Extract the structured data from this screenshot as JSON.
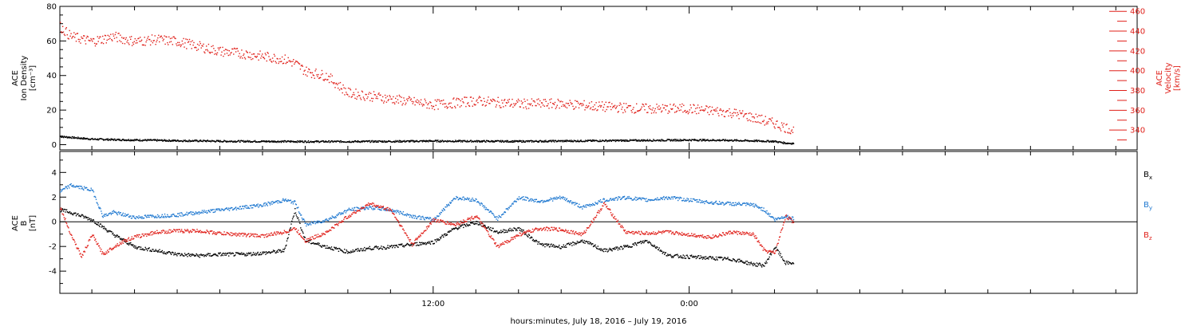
{
  "chart_data": [
    {
      "type": "scatter",
      "panel": "top",
      "left_axis": {
        "label_lines": [
          "ACE",
          "Ion Density",
          "[cm⁻³]"
        ],
        "ylim": [
          -3,
          80
        ],
        "ticks": [
          0,
          20,
          40,
          60,
          80
        ],
        "color": "#000000"
      },
      "right_axis": {
        "label_lines": [
          "ACE",
          "Velocity",
          "[km/s]"
        ],
        "ylim": [
          320,
          465
        ],
        "ticks": [
          340,
          360,
          380,
          400,
          420,
          440,
          460
        ],
        "color": "#e0201a"
      },
      "xlim_hours": [
        -5.5,
        45
      ],
      "series": [
        {
          "axis": "left",
          "color": "#000000",
          "x": [
            -5.5,
            -5,
            -4,
            -3,
            -2,
            -1,
            0,
            1,
            2,
            4,
            6,
            8,
            10,
            12,
            14,
            16,
            18,
            20,
            22,
            24,
            26,
            28,
            28.5,
            28.9
          ],
          "values": [
            5,
            4.5,
            3.5,
            3.2,
            3,
            2.8,
            2.6,
            2.5,
            2.3,
            2.2,
            2.1,
            2.1,
            2.2,
            2.4,
            2.3,
            2.2,
            2.4,
            2.6,
            2.8,
            3,
            2.8,
            2.2,
            1.2,
            1
          ]
        },
        {
          "axis": "right",
          "color": "#e0201a",
          "x": [
            -5.5,
            -5,
            -4,
            -3,
            -2,
            -1,
            0,
            1,
            2,
            3,
            4,
            5,
            5.5,
            6,
            7,
            8,
            10,
            12,
            14,
            16,
            18,
            20,
            22,
            24,
            26,
            27,
            28,
            28.9
          ],
          "values": [
            445,
            435,
            430,
            435,
            430,
            432,
            430,
            425,
            420,
            418,
            415,
            412,
            408,
            400,
            395,
            378,
            372,
            366,
            370,
            367,
            367,
            364,
            362,
            362,
            358,
            353,
            347,
            340
          ]
        }
      ]
    },
    {
      "type": "scatter",
      "panel": "bottom",
      "left_axis": {
        "label_lines": [
          "ACE",
          "B",
          "[nT]"
        ],
        "ylim": [
          -5.8,
          5.7
        ],
        "ticks": [
          -4,
          -2,
          0,
          2,
          4
        ],
        "color": "#000000"
      },
      "xlim_hours": [
        -5.5,
        45
      ],
      "zero_line": true,
      "legend_placement": "right",
      "legend": [
        {
          "label": "B",
          "sub": "x",
          "color": "#000000"
        },
        {
          "label": "B",
          "sub": "y",
          "color": "#1f78d0"
        },
        {
          "label": "B",
          "sub": "z",
          "color": "#e0201a"
        }
      ],
      "series": [
        {
          "name": "Bx",
          "color": "#000000",
          "x": [
            -5.5,
            -5,
            -4,
            -3,
            -2.5,
            -2,
            -1,
            0,
            1,
            2,
            3,
            4,
            5,
            5.5,
            6,
            7,
            8,
            9,
            10,
            11,
            12,
            13,
            14,
            15,
            16,
            17,
            18,
            19,
            20,
            21,
            22,
            23,
            24,
            25,
            26,
            27,
            27.5,
            28,
            28.5,
            28.9
          ],
          "values": [
            1,
            0.8,
            0.2,
            -1,
            -1.5,
            -2,
            -2.3,
            -2.6,
            -2.7,
            -2.6,
            -2.6,
            -2.5,
            -2.3,
            1,
            -1.5,
            -2,
            -2.4,
            -2.1,
            -2,
            -1.8,
            -1.6,
            -0.5,
            0,
            -0.8,
            -0.5,
            -1.8,
            -2,
            -1.5,
            -2.3,
            -2,
            -1.5,
            -2.7,
            -2.8,
            -2.9,
            -3,
            -3.4,
            -3.5,
            -2,
            -3.3,
            -3.3
          ]
        },
        {
          "name": "By",
          "color": "#1f78d0",
          "x": [
            -5.5,
            -5,
            -4.5,
            -4,
            -3.5,
            -3,
            -2.5,
            -2,
            -1,
            0,
            1,
            2,
            3,
            4,
            5,
            5.5,
            6,
            7,
            8,
            9,
            10,
            11,
            12,
            13,
            14,
            15,
            16,
            17,
            18,
            19,
            20,
            21,
            22,
            23,
            24,
            25,
            26,
            27,
            27.5,
            28,
            28.5,
            28.9
          ],
          "values": [
            2.5,
            3,
            2.8,
            2.6,
            0.5,
            0.8,
            0.6,
            0.4,
            0.5,
            0.6,
            0.8,
            1,
            1.2,
            1.4,
            1.8,
            1.6,
            -0.2,
            0.2,
            1,
            1.2,
            1,
            0.5,
            0.2,
            2,
            1.8,
            0.3,
            2,
            1.7,
            2,
            1.2,
            1.8,
            2,
            1.8,
            2,
            1.8,
            1.6,
            1.5,
            1.4,
            1,
            0.2,
            0.5,
            0.3
          ]
        },
        {
          "name": "Bz",
          "color": "#e0201a",
          "x": [
            -5.5,
            -5,
            -4.5,
            -4,
            -3.5,
            -3,
            -2.5,
            -2,
            -1,
            0,
            1,
            2,
            3,
            4,
            5,
            5.5,
            6,
            7,
            8,
            9,
            10,
            11,
            12,
            13,
            14,
            15,
            16,
            17,
            18,
            19,
            20,
            21,
            22,
            23,
            24,
            25,
            26,
            27,
            27.5,
            28,
            28.5,
            28.9
          ],
          "values": [
            1.2,
            -1,
            -2.8,
            -1,
            -2.6,
            -2,
            -1.5,
            -1.2,
            -0.8,
            -0.7,
            -0.7,
            -0.9,
            -1,
            -1.1,
            -0.8,
            -0.5,
            -1.5,
            -0.8,
            0.5,
            1.5,
            1,
            -1.8,
            0.2,
            -0.2,
            0.5,
            -2,
            -1,
            -0.5,
            -0.6,
            -1,
            1.5,
            -0.8,
            -0.9,
            -0.8,
            -1,
            -1.2,
            -0.8,
            -1,
            -2.3,
            -2.5,
            0.5,
            0
          ]
        }
      ]
    }
  ],
  "x_axis": {
    "tick_labels": [
      {
        "hour": 12,
        "label": "12:00"
      },
      {
        "hour": 24,
        "label": "0:00"
      }
    ],
    "minor_step_hours": 2,
    "title": "hours:minutes, July 18, 2016 – July 19, 2016"
  }
}
